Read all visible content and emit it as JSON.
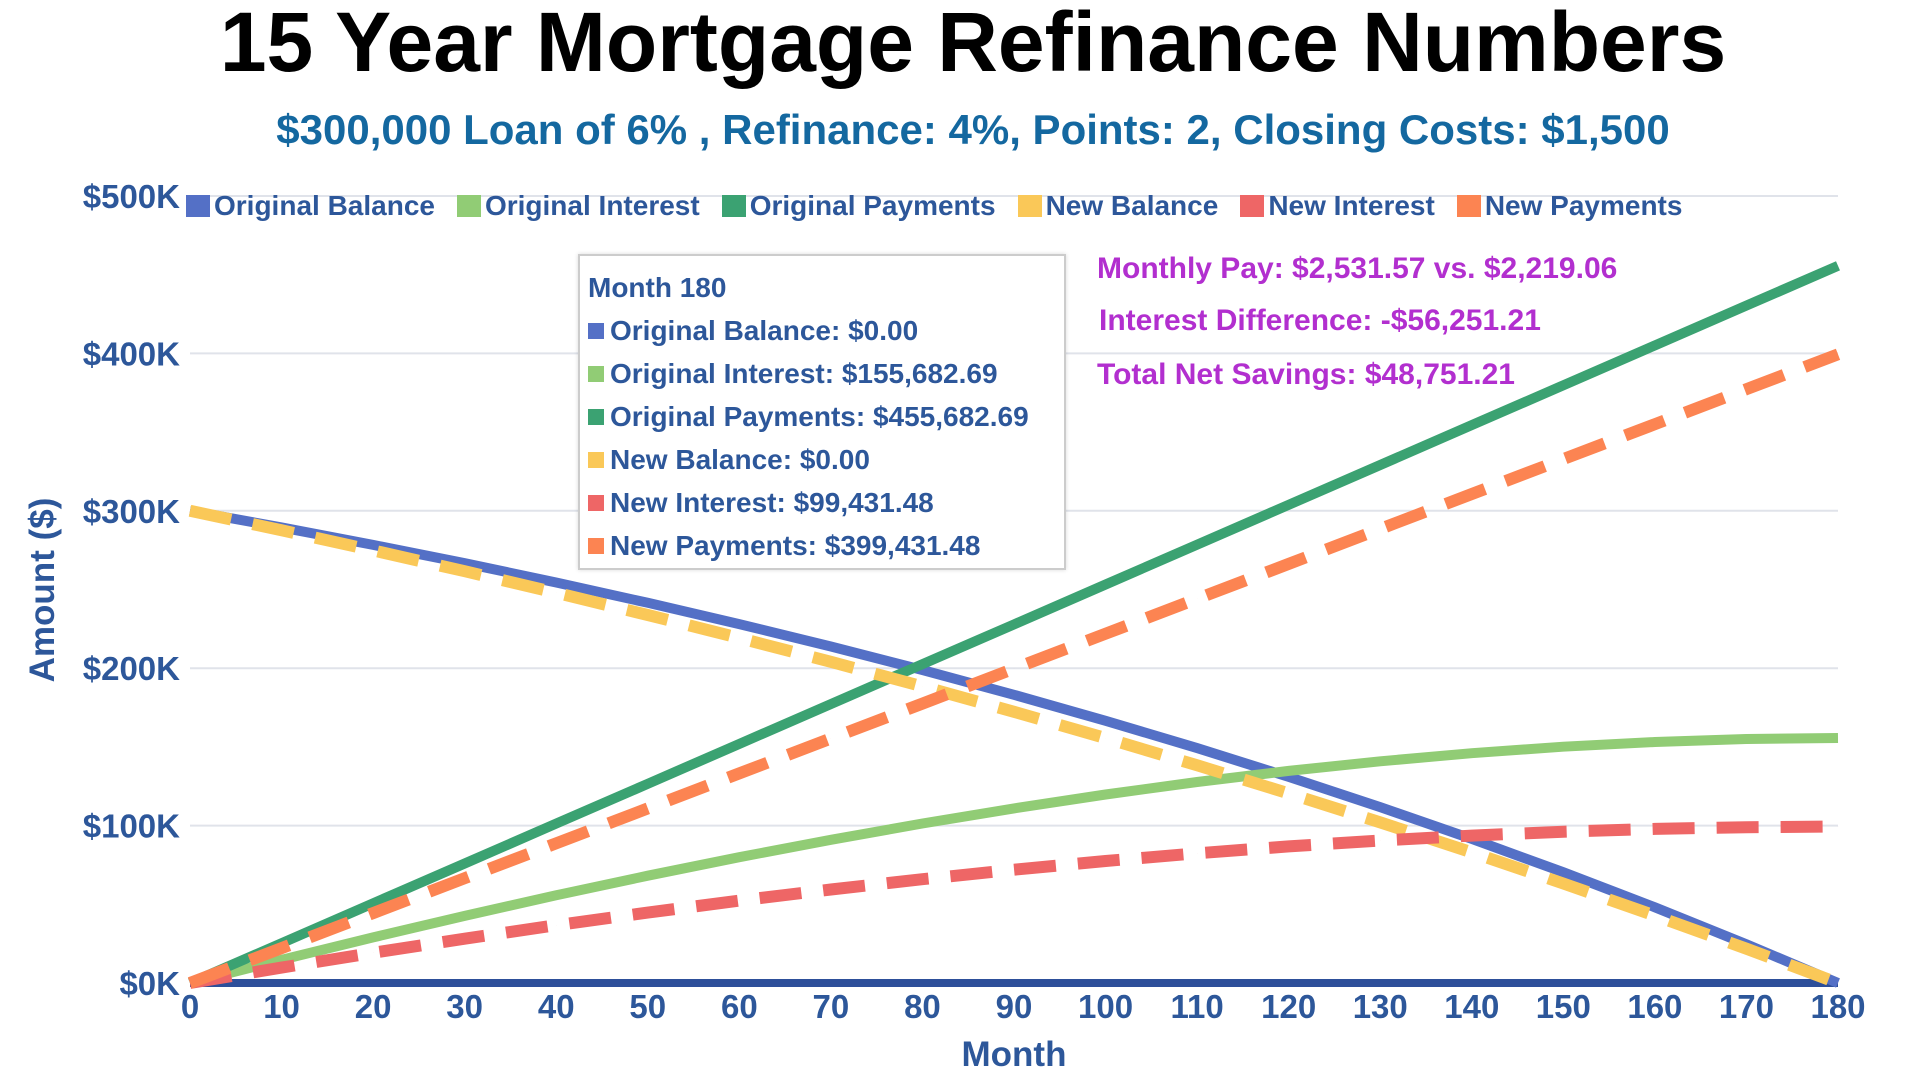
{
  "chart_data": {
    "type": "line",
    "title": "15 Year Mortgage Refinance Numbers",
    "subtitle": "$300,000 Loan of 6% , Refinance: 4%, Points: 2, Closing Costs: $1,500",
    "xlabel": "Month",
    "ylabel": "Amount ($)",
    "xlim": [
      0,
      180
    ],
    "ylim": [
      0,
      500000
    ],
    "x_ticks": [
      "0",
      "10",
      "20",
      "30",
      "40",
      "50",
      "60",
      "70",
      "80",
      "90",
      "100",
      "110",
      "120",
      "130",
      "140",
      "150",
      "160",
      "170",
      "180"
    ],
    "y_ticks": [
      "$0K",
      "$100K",
      "$200K",
      "$300K",
      "$400K",
      "$500K"
    ],
    "grid": true,
    "legend_position": "top",
    "x": [
      0,
      10,
      20,
      30,
      40,
      50,
      60,
      70,
      80,
      90,
      100,
      110,
      120,
      130,
      140,
      150,
      160,
      170,
      180
    ],
    "series": [
      {
        "name": "Original Balance",
        "color": "#5470c6",
        "style": "solid",
        "values": [
          300000,
          289449,
          278358,
          266702,
          254449,
          241566,
          228029,
          213797,
          198837,
          183114,
          166584,
          149211,
          130948,
          111753,
          91575,
          70366,
          48071,
          24636,
          0
        ]
      },
      {
        "name": "Original Interest",
        "color": "#91cc75",
        "style": "solid",
        "values": [
          0,
          14765,
          28989,
          42649,
          55712,
          68145,
          79923,
          91007,
          101363,
          110955,
          119741,
          127684,
          134736,
          140857,
          145995,
          150102,
          153122,
          155003,
          155683
        ]
      },
      {
        "name": "Original Payments",
        "color": "#3ba272",
        "style": "solid",
        "values": [
          0,
          25316,
          50631,
          75947,
          101263,
          126579,
          151894,
          177210,
          202526,
          227841,
          253157,
          278473,
          303788,
          329104,
          354420,
          379736,
          405051,
          430367,
          455683
        ]
      },
      {
        "name": "New Balance",
        "color": "#fac858",
        "style": "dashed",
        "values": [
          300000,
          287624,
          274824,
          261599,
          247931,
          233792,
          219178,
          204066,
          188443,
          172293,
          155594,
          138332,
          120485,
          102035,
          82959,
          63239,
          42850,
          21774,
          0
        ]
      },
      {
        "name": "New Interest",
        "color": "#ee6666",
        "style": "dashed",
        "values": [
          0,
          9815,
          19205,
          28171,
          36693,
          44745,
          52322,
          59400,
          65968,
          72008,
          77500,
          82429,
          86772,
          90513,
          93627,
          96098,
          97900,
          99014,
          99431
        ]
      },
      {
        "name": "New Payments",
        "color": "#fc8452",
        "style": "dashed",
        "values": [
          0,
          22191,
          44381,
          66572,
          88762,
          110953,
          133144,
          155334,
          177525,
          199715,
          221906,
          244097,
          266287,
          288478,
          310668,
          332859,
          355050,
          377240,
          399431
        ]
      }
    ],
    "tooltip": {
      "header": "Month 180",
      "rows": [
        "Original Balance: $0.00",
        "Original Interest: $155,682.69",
        "Original Payments: $455,682.69",
        "New Balance: $0.00",
        "New Interest: $99,431.48",
        "New Payments: $399,431.48"
      ]
    },
    "annotations": [
      "Monthly Pay: $2,531.57 vs. $2,219.06",
      "Interest Difference: -$56,251.21",
      "Total Net Savings: $48,751.21"
    ]
  }
}
